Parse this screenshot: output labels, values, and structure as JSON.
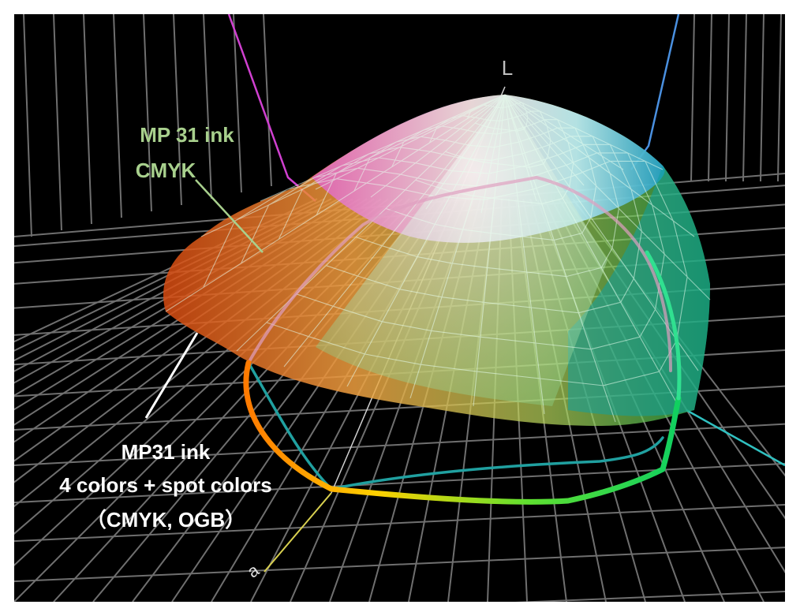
{
  "axis_labels": {
    "lightness": "L",
    "b_axis_end": "a"
  },
  "callouts": {
    "cmyk_title": "MP 31 ink",
    "cmyk_subtitle": "CMYK",
    "spot_line1": "MP31 ink",
    "spot_line2": "4 colors + spot colors",
    "spot_line3": "（CMYK, OGB）"
  },
  "colors": {
    "background": "#000000",
    "grid": "#8a8a8a",
    "cmyk_label": "#a8d08d",
    "spot_label": "#ffffff"
  }
}
